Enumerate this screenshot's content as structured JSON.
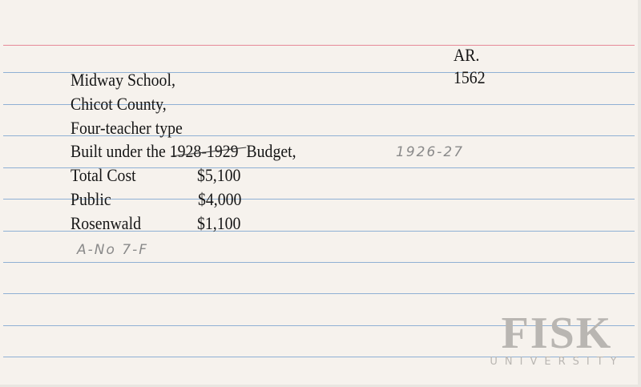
{
  "card": {
    "code": "AR.",
    "number": "1562",
    "school": "Midway School,",
    "county": "Chicot County,",
    "type": "Four-teacher type",
    "built_prefix": "Built under the",
    "budget_years_struck": "1928-1929",
    "built_suffix": "Budget,",
    "handwritten_year": "1926-27",
    "costs": [
      {
        "label": "Total Cost",
        "amount": "$5,100"
      },
      {
        "label": "Public",
        "amount": "$4,000"
      },
      {
        "label": "Rosenwald",
        "amount": "$1,100"
      }
    ],
    "handwritten_plan": "A-No 7-F"
  },
  "logo": {
    "name": "FISK",
    "subtitle": "UNIVERSITY"
  },
  "colors": {
    "paper": "#f6f2ed",
    "red_rule": "#e68a98",
    "blue_rule": "#8fb0d4"
  }
}
